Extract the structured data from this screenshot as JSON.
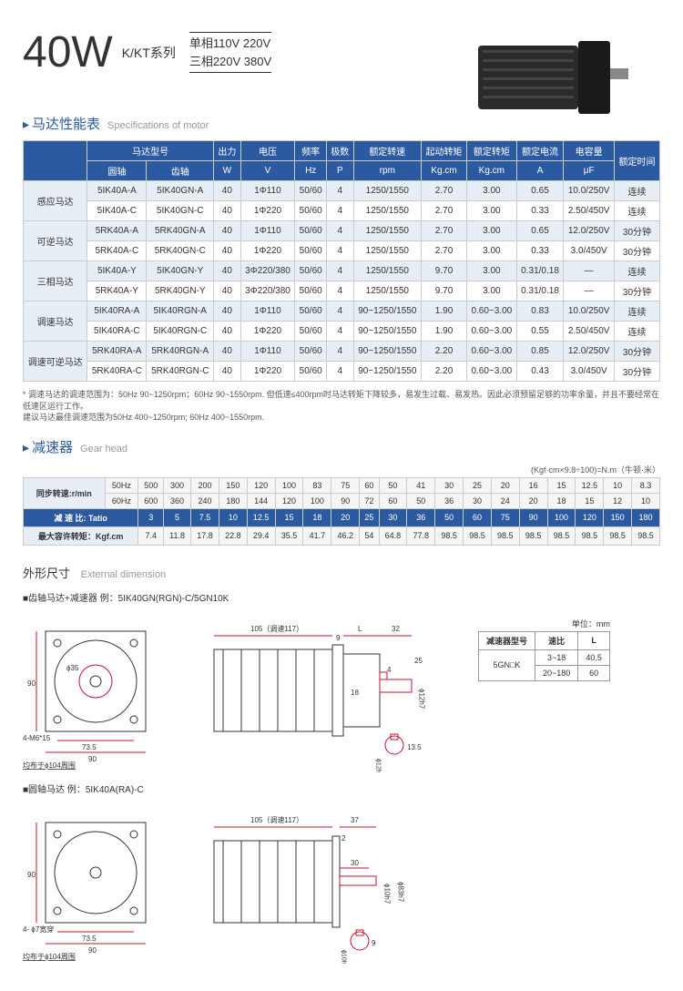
{
  "header": {
    "wattage": "40W",
    "series": "K/KT系列",
    "voltage_line1": "单相110V  220V",
    "voltage_line2": "三相220V  380V"
  },
  "spec_section": {
    "arrow": "▸",
    "title_cn": "马达性能表",
    "title_en": "Specifications of motor",
    "headers": {
      "model": "马达型号",
      "round_shaft": "圆轴",
      "gear_shaft": "齿轴",
      "output": "出力",
      "output_unit": "W",
      "voltage": "电压",
      "voltage_unit": "V",
      "freq": "频率",
      "freq_unit": "Hz",
      "poles": "极数",
      "poles_unit": "P",
      "rated_speed": "额定转速",
      "rated_speed_unit": "rpm",
      "start_torque": "起动转矩",
      "start_torque_unit": "Kg.cm",
      "rated_torque": "额定转矩",
      "rated_torque_unit": "Kg.cm",
      "rated_current": "额定电流",
      "rated_current_unit": "A",
      "capacitance": "电容量",
      "capacitance_unit": "μF",
      "rated_time": "额定时间"
    },
    "row_groups": [
      {
        "label": "感应马达",
        "rows": [
          [
            "5IK40A-A",
            "5IK40GN-A",
            "40",
            "1Φ110",
            "50/60",
            "4",
            "1250/1550",
            "2.70",
            "3.00",
            "0.65",
            "10.0/250V",
            "连续"
          ],
          [
            "5IK40A-C",
            "5IK40GN-C",
            "40",
            "1Φ220",
            "50/60",
            "4",
            "1250/1550",
            "2.70",
            "3.00",
            "0.33",
            "2.50/450V",
            "连续"
          ]
        ]
      },
      {
        "label": "可逆马达",
        "rows": [
          [
            "5RK40A-A",
            "5RK40GN-A",
            "40",
            "1Φ110",
            "50/60",
            "4",
            "1250/1550",
            "2.70",
            "3.00",
            "0.65",
            "12.0/250V",
            "30分钟"
          ],
          [
            "5RK40A-C",
            "5RK40GN-C",
            "40",
            "1Φ220",
            "50/60",
            "4",
            "1250/1550",
            "2.70",
            "3.00",
            "0.33",
            "3.0/450V",
            "30分钟"
          ]
        ]
      },
      {
        "label": "三相马达",
        "rows": [
          [
            "5IK40A-Y",
            "5IK40GN-Y",
            "40",
            "3Φ220/380",
            "50/60",
            "4",
            "1250/1550",
            "9.70",
            "3.00",
            "0.31/0.18",
            "—",
            "连续"
          ],
          [
            "5RK40A-Y",
            "5RK40GN-Y",
            "40",
            "3Φ220/380",
            "50/60",
            "4",
            "1250/1550",
            "9.70",
            "3.00",
            "0.31/0.18",
            "—",
            "30分钟"
          ]
        ]
      },
      {
        "label": "调速马达",
        "rows": [
          [
            "5IK40RA-A",
            "5IK40RGN-A",
            "40",
            "1Φ110",
            "50/60",
            "4",
            "90~1250/1550",
            "1.90",
            "0.60~3.00",
            "0.83",
            "10.0/250V",
            "连续"
          ],
          [
            "5IK40RA-C",
            "5IK40RGN-C",
            "40",
            "1Φ220",
            "50/60",
            "4",
            "90~1250/1550",
            "1.90",
            "0.60~3.00",
            "0.55",
            "2.50/450V",
            "连续"
          ]
        ]
      },
      {
        "label": "调速可逆马达",
        "rows": [
          [
            "5RK40RA-A",
            "5RK40RGN-A",
            "40",
            "1Φ110",
            "50/60",
            "4",
            "90~1250/1550",
            "2.20",
            "0.60~3.00",
            "0.85",
            "12.0/250V",
            "30分钟"
          ],
          [
            "5RK40RA-C",
            "5RK40RGN-C",
            "40",
            "1Φ220",
            "50/60",
            "4",
            "90~1250/1550",
            "2.20",
            "0.60~3.00",
            "0.43",
            "3.0/450V",
            "30分钟"
          ]
        ]
      }
    ],
    "note": "* 调速马达的调速范围为：50Hz 90~1250rpm；60Hz 90~1550rpm. 但低速≤400rpm时马达转矩下降较多，易发生过载、易发热。因此必须预留足够的功率余量，并且不要经常在低速区运行工作。\n建议马达最佳调速范围为50Hz 400~1250rpm; 60Hz 400~1550rpm."
  },
  "gear_section": {
    "title_cn": "减速器",
    "title_en": "Gear head",
    "unit": "(Kgf·cm×9.8÷100)=N.m（牛顿·米）",
    "sync_label": "同步转速:r/min",
    "ratio_label": "减 速 比: Tatio",
    "max_torque_label": "最大容许转矩：Kgf.cm",
    "rows": {
      "50hz": [
        "50Hz",
        "500",
        "300",
        "200",
        "150",
        "120",
        "100",
        "83",
        "75",
        "60",
        "50",
        "41",
        "30",
        "25",
        "20",
        "16",
        "15",
        "12.5",
        "10",
        "8.3"
      ],
      "60hz": [
        "60Hz",
        "600",
        "360",
        "240",
        "180",
        "144",
        "120",
        "100",
        "90",
        "72",
        "60",
        "50",
        "36",
        "30",
        "24",
        "20",
        "18",
        "15",
        "12",
        "10"
      ],
      "ratio": [
        "3",
        "5",
        "7.5",
        "10",
        "12.5",
        "15",
        "18",
        "20",
        "25",
        "30",
        "36",
        "50",
        "60",
        "75",
        "90",
        "100",
        "120",
        "150",
        "180"
      ],
      "torque": [
        "7.4",
        "11.8",
        "17.8",
        "22.8",
        "29.4",
        "35.5",
        "41.7",
        "46.2",
        "54",
        "64.8",
        "77.8",
        "98.5",
        "98.5",
        "98.5",
        "98.5",
        "98.5",
        "98.5",
        "98.5",
        "98.5"
      ]
    }
  },
  "ext_section": {
    "title_cn": "外形尺寸",
    "title_en": "External dimension",
    "sub1": "■齿轴马达+减速器   例：5IK40GN(RGN)-C/5GN10K",
    "sub2": "■圆轴马达   例：5IK40A(RA)-C",
    "dim_table": {
      "unit": "单位：mm",
      "headers": [
        "减速器型号",
        "速比",
        "L"
      ],
      "rows": [
        [
          "5GN□K",
          "3~18",
          "40.5"
        ],
        [
          "",
          "20~180",
          "60"
        ]
      ]
    },
    "dims": {
      "d1_105": "105（调速117）",
      "d1_L": "L",
      "d1_32": "32",
      "d1_9": "9",
      "d1_25": "25",
      "d1_4": "4",
      "d1_18": "18",
      "d1_12h7": "ϕ12h7",
      "d1_13_5": "13.5",
      "d1_phi12h7b": "ϕ12h7",
      "sq_90": "90",
      "sq_73_5": "73.5",
      "sq_phi35": "ϕ35",
      "sq_4m6": "4-M6*15",
      "sq_104": "均布于ϕ104周围",
      "d2_105": "105（调速117）",
      "d2_37": "37",
      "d2_2": "2",
      "d2_30": "30",
      "d2_10h7": "ϕ10h7",
      "d2_83h7": "ϕ83h7",
      "d2_9": "9",
      "d2_10h7b": "ϕ10h7",
      "sq2_4phi7": "4- ϕ7宽穿",
      "sq2_104": "均布于ϕ104周围"
    }
  },
  "colors": {
    "primary": "#2c5aa0",
    "red": "#c8102e",
    "light_blue": "#e8eef5"
  }
}
